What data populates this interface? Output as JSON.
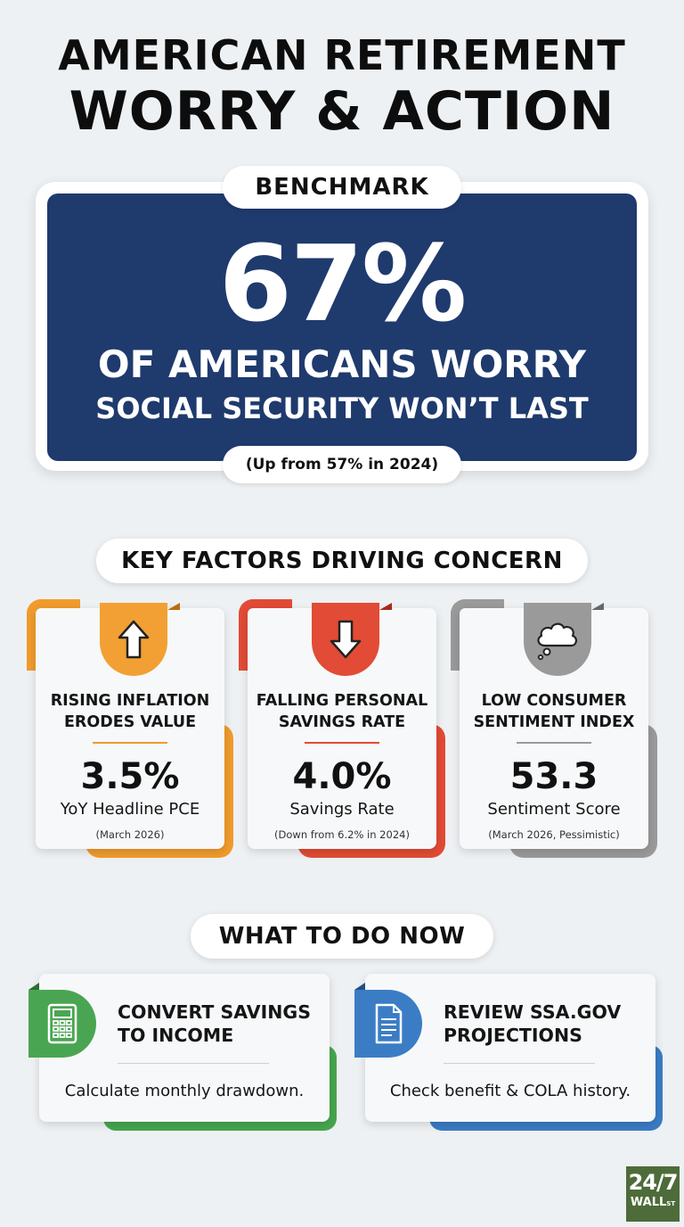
{
  "title": {
    "line1": "AMERICAN RETIREMENT",
    "line2": "WORRY & ACTION"
  },
  "benchmark": {
    "tag": "BENCHMARK",
    "value": "67%",
    "line1": "OF AMERICANS WORRY",
    "line2": "SOCIAL SECURITY WON’T LAST",
    "note": "(Up from 57% in 2024)",
    "color": "#1f3a6d"
  },
  "factors_section": {
    "heading": "KEY FACTORS DRIVING CONCERN",
    "items": [
      {
        "icon": "arrow-up-icon",
        "heading_l1": "RISING INFLATION",
        "heading_l2": "ERODES VALUE",
        "value": "3.5%",
        "label": "YoY Headline PCE",
        "note": "(March 2026)",
        "color": "#f09b2c"
      },
      {
        "icon": "arrow-down-icon",
        "heading_l1": "FALLING PERSONAL",
        "heading_l2": "SAVINGS RATE",
        "value": "4.0%",
        "label": "Savings Rate",
        "note": "(Down from 6.2% in 2024)",
        "color": "#e24b35"
      },
      {
        "icon": "thought-cloud-icon",
        "heading_l1": "LOW CONSUMER",
        "heading_l2": "SENTIMENT INDEX",
        "value": "53.3",
        "label": "Sentiment Score",
        "note": "(March 2026, Pessimistic)",
        "color": "#9a9a9a"
      }
    ]
  },
  "todo_section": {
    "heading": "WHAT TO DO NOW",
    "items": [
      {
        "icon": "calculator-icon",
        "heading_l1": "CONVERT SAVINGS",
        "heading_l2": "TO INCOME",
        "text": "Calculate monthly drawdown.",
        "color": "#46a64f"
      },
      {
        "icon": "document-icon",
        "heading_l1": "REVIEW SSA.GOV",
        "heading_l2": "PROJECTIONS",
        "text": "Check benefit & COLA history.",
        "color": "#3a7cc4"
      }
    ]
  },
  "logo": {
    "line1": "24/7",
    "line2": "WALL",
    "line3": "ST"
  }
}
